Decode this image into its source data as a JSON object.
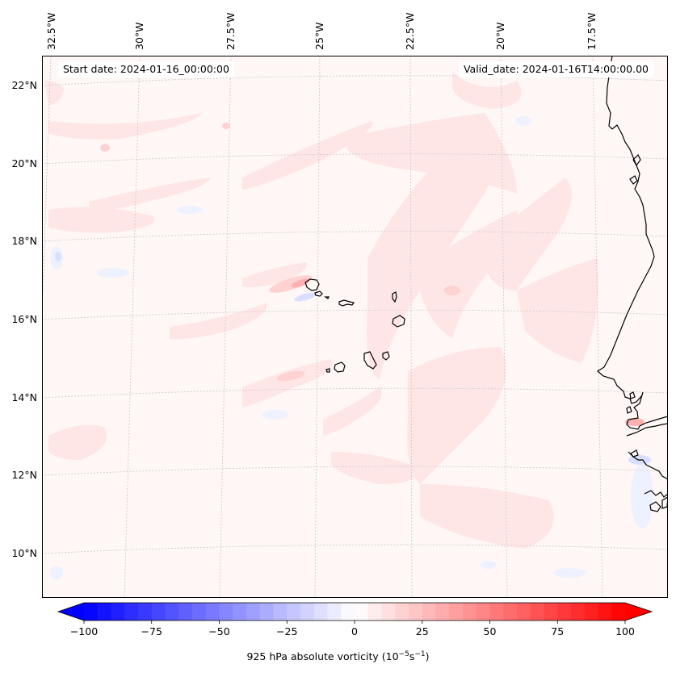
{
  "map": {
    "start_label": "Start date: 2024-01-16_00:00:00",
    "valid_label": "Valid_date: 2024-01-16T14:00:00.00",
    "lon_labels": [
      "32.5°W",
      "30°W",
      "27.5°W",
      "25°W",
      "22.5°W",
      "20°W",
      "17.5°W"
    ],
    "lat_labels": [
      "22°N",
      "20°N",
      "18°N",
      "16°N",
      "14°N",
      "12°N",
      "10°N"
    ],
    "field": "925 hPa absolute vorticity",
    "units_text": "(10",
    "units_exp1": "−5",
    "units_mid": "s",
    "units_exp2": "−1",
    "units_close": ")"
  },
  "colorbar": {
    "min": -100,
    "max": 100,
    "levels": 41,
    "ticks": [
      -100,
      -75,
      -50,
      -25,
      0,
      25,
      50,
      75,
      100
    ],
    "tick_labels": [
      "−100",
      "−75",
      "−50",
      "−25",
      "0",
      "25",
      "50",
      "75",
      "100"
    ],
    "colormap": "bwr",
    "low_color": "#0000ff",
    "mid_color": "#ffffff",
    "high_color": "#ff0000"
  },
  "colors": {
    "background_field": "#fff6f6",
    "positive_light": "#ffe6e6",
    "positive_medium": "#ffcccc",
    "negative_light": "#eef1ff",
    "coastline": "#000000",
    "gridline": "#c8c8c8"
  }
}
